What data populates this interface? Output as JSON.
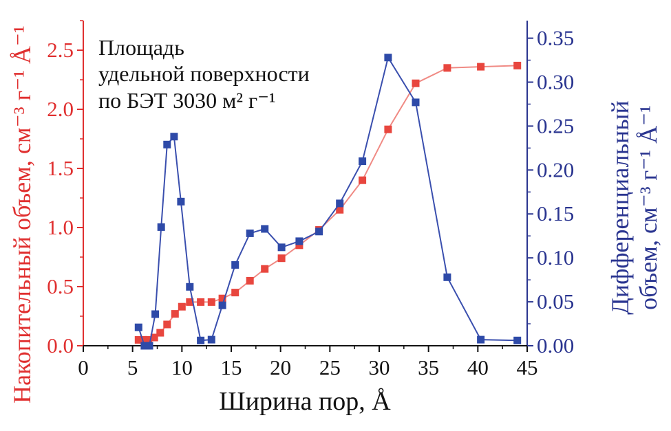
{
  "chart_data": {
    "type": "line",
    "xlabel": "Ширина пор, Å",
    "xlim": [
      0,
      45
    ],
    "x_ticks": [
      "0",
      "5",
      "10",
      "15",
      "20",
      "25",
      "30",
      "35",
      "40",
      "45"
    ],
    "ylabel_left": "Накопительный объем, см⁻³ г⁻¹ Å⁻¹",
    "ylim_left": [
      0,
      2.75
    ],
    "y_ticks_left": [
      "0.0",
      "0.5",
      "1.0",
      "1.5",
      "2.0",
      "2.5"
    ],
    "ylabel_right_line1": "Дифференциальный",
    "ylabel_right_line2": "объем, см⁻³ г⁻¹ Å⁻¹",
    "ylim_right": [
      0,
      0.37
    ],
    "y_ticks_right": [
      "0.00",
      "0.05",
      "0.10",
      "0.15",
      "0.20",
      "0.25",
      "0.30",
      "0.35"
    ],
    "annotation_lines": [
      "Площадь",
      "удельной поверхности",
      "по БЭТ 3030 м² г⁻¹"
    ],
    "series": [
      {
        "name": "Накопительный объем",
        "axis": "left",
        "color": "#e8463e",
        "x": [
          5.6,
          6.1,
          6.6,
          7.2,
          7.8,
          8.5,
          9.3,
          10.0,
          10.8,
          11.9,
          13.0,
          14.1,
          15.4,
          16.9,
          18.4,
          20.1,
          21.9,
          23.9,
          26.0,
          28.3,
          30.9,
          33.7,
          36.9,
          40.3,
          44.0
        ],
        "values": [
          0.05,
          0.05,
          0.05,
          0.07,
          0.11,
          0.18,
          0.27,
          0.33,
          0.37,
          0.37,
          0.37,
          0.4,
          0.45,
          0.55,
          0.65,
          0.74,
          0.85,
          0.98,
          1.15,
          1.4,
          1.83,
          2.22,
          2.35,
          2.36,
          2.37
        ]
      },
      {
        "name": "Дифференциальный объем",
        "axis": "right",
        "color": "#2e4aa8",
        "x": [
          5.6,
          6.2,
          6.7,
          7.3,
          7.9,
          8.5,
          9.2,
          9.9,
          10.8,
          11.9,
          13.0,
          14.1,
          15.4,
          16.9,
          18.4,
          20.1,
          21.9,
          23.9,
          26.0,
          28.3,
          30.9,
          33.7,
          36.9,
          40.3,
          44.0
        ],
        "values": [
          0.021,
          0.0,
          0.0,
          0.036,
          0.135,
          0.229,
          0.238,
          0.164,
          0.067,
          0.006,
          0.007,
          0.046,
          0.092,
          0.128,
          0.133,
          0.112,
          0.119,
          0.13,
          0.162,
          0.21,
          0.328,
          0.277,
          0.078,
          0.007,
          0.006
        ]
      }
    ]
  }
}
